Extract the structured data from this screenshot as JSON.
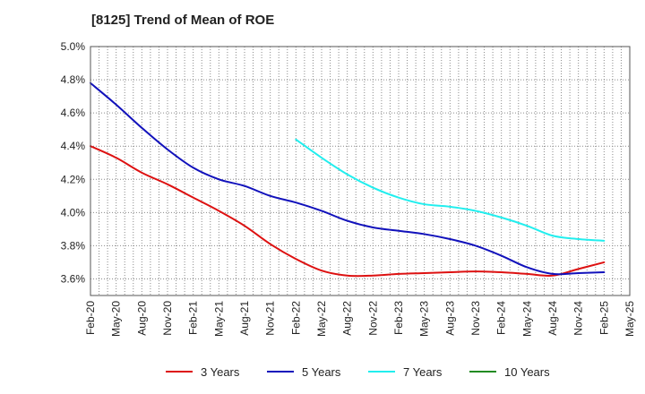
{
  "chart_data": {
    "type": "line",
    "title": "[8125]  Trend of Mean of ROE",
    "xlabel": "",
    "ylabel": "",
    "ylim": [
      3.5,
      5.0
    ],
    "y_ticks": [
      3.6,
      3.8,
      4.0,
      4.2,
      4.4,
      4.6,
      4.8,
      5.0
    ],
    "y_tick_labels": [
      "3.6%",
      "3.8%",
      "4.0%",
      "4.2%",
      "4.4%",
      "4.6%",
      "4.8%",
      "5.0%"
    ],
    "x_tick_labels": [
      "Feb-20",
      "May-20",
      "Aug-20",
      "Nov-20",
      "Feb-21",
      "May-21",
      "Aug-21",
      "Nov-21",
      "Feb-22",
      "May-22",
      "Aug-22",
      "Nov-22",
      "Feb-23",
      "May-23",
      "Aug-23",
      "Nov-23",
      "Feb-24",
      "May-24",
      "Aug-24",
      "Nov-24",
      "Feb-25",
      "May-25"
    ],
    "x_range_months": [
      0,
      63
    ],
    "grid": true,
    "legend_position": "bottom",
    "series": [
      {
        "name": "3 Years",
        "color": "#dd1111",
        "x": [
          0,
          3,
          6,
          9,
          12,
          15,
          18,
          21,
          24,
          27,
          30,
          33,
          36,
          39,
          42,
          45,
          48,
          51,
          54,
          57,
          60
        ],
        "values": [
          4.4,
          4.33,
          4.24,
          4.17,
          4.09,
          4.01,
          3.92,
          3.81,
          3.72,
          3.65,
          3.62,
          3.62,
          3.63,
          3.635,
          3.64,
          3.645,
          3.64,
          3.63,
          3.62,
          3.66,
          3.7
        ]
      },
      {
        "name": "5 Years",
        "color": "#1111bb",
        "x": [
          0,
          3,
          6,
          9,
          12,
          15,
          18,
          21,
          24,
          27,
          30,
          33,
          36,
          39,
          42,
          45,
          48,
          51,
          54,
          57,
          60
        ],
        "values": [
          4.78,
          4.65,
          4.51,
          4.38,
          4.27,
          4.2,
          4.16,
          4.1,
          4.06,
          4.01,
          3.95,
          3.91,
          3.89,
          3.87,
          3.84,
          3.8,
          3.74,
          3.67,
          3.63,
          3.635,
          3.64
        ]
      },
      {
        "name": "7 Years",
        "color": "#22eeee",
        "x": [
          24,
          27,
          30,
          33,
          36,
          39,
          42,
          45,
          48,
          51,
          54,
          57,
          60
        ],
        "values": [
          4.44,
          4.33,
          4.23,
          4.15,
          4.09,
          4.05,
          4.035,
          4.01,
          3.97,
          3.92,
          3.86,
          3.84,
          3.83
        ]
      },
      {
        "name": "10 Years",
        "color": "#228b22",
        "x": [],
        "values": []
      }
    ]
  }
}
